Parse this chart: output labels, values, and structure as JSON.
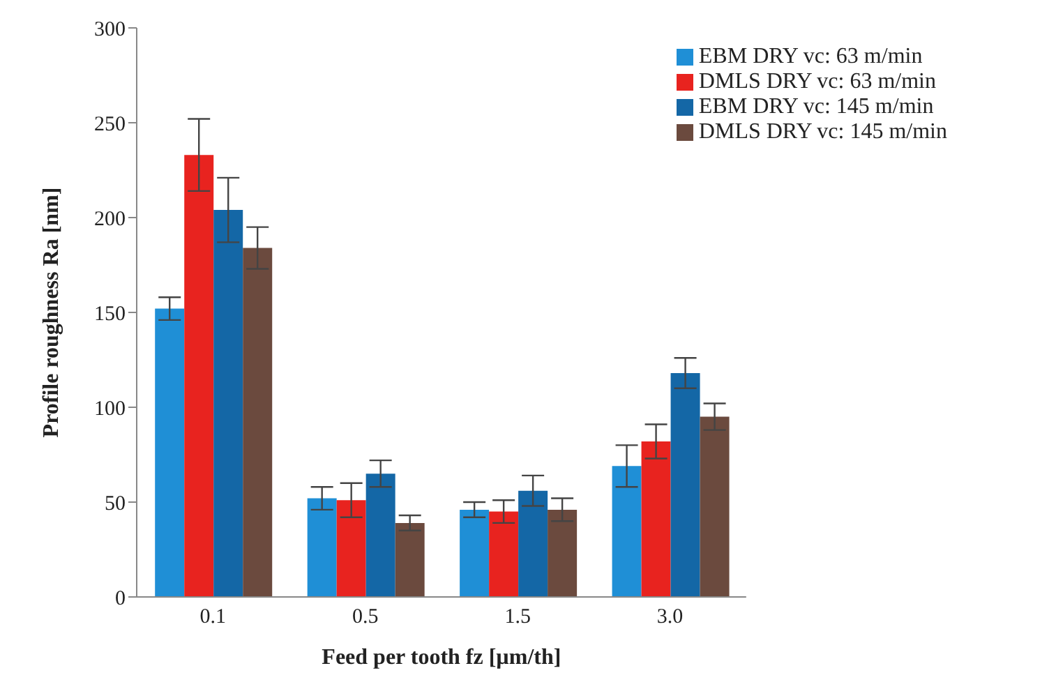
{
  "chart_data": {
    "type": "bar",
    "xlabel": "Feed per tooth fz [µm/th]",
    "ylabel": "Profile roughness Ra [nm]",
    "categories": [
      "0.1",
      "0.5",
      "1.5",
      "3.0"
    ],
    "series": [
      {
        "name": "EBM DRY vc: 63 m/min",
        "color": "#1f8fd6",
        "values": [
          152,
          52,
          46,
          69
        ],
        "errors": [
          6,
          6,
          4,
          11
        ]
      },
      {
        "name": "DMLS DRY vc: 63 m/min",
        "color": "#e8231f",
        "values": [
          233,
          51,
          45,
          82
        ],
        "errors": [
          19,
          9,
          6,
          9
        ]
      },
      {
        "name": "EBM DRY vc: 145 m/min",
        "color": "#1467a6",
        "values": [
          204,
          65,
          56,
          118
        ],
        "errors": [
          17,
          7,
          8,
          8
        ]
      },
      {
        "name": "DMLS DRY vc: 145 m/min",
        "color": "#6b4a3e",
        "values": [
          184,
          39,
          46,
          95
        ],
        "errors": [
          11,
          4,
          6,
          7
        ]
      }
    ],
    "ylim": [
      0,
      300
    ],
    "yticks": [
      0,
      50,
      100,
      150,
      200,
      250,
      300
    ],
    "grid": false,
    "legend": "top right"
  }
}
